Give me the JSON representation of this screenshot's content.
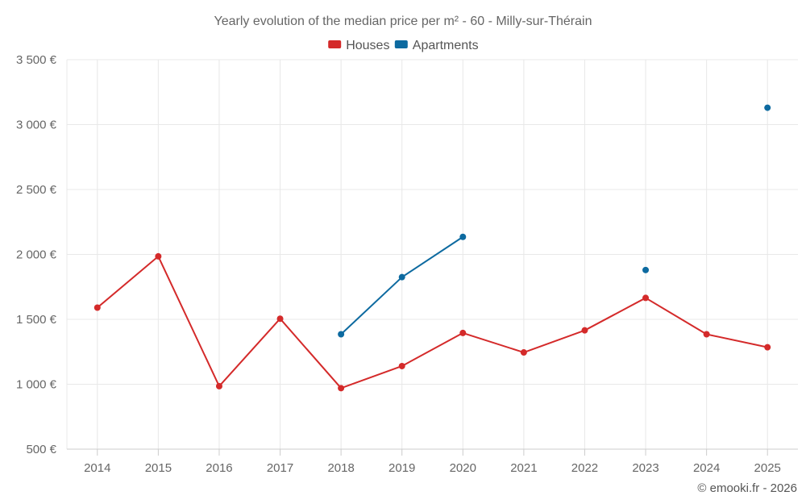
{
  "chart_data": {
    "type": "line",
    "title": "Yearly evolution of the median price per m² - 60 - Milly-sur-Thérain",
    "categories": [
      "2014",
      "2015",
      "2016",
      "2017",
      "2018",
      "2019",
      "2020",
      "2021",
      "2022",
      "2023",
      "2024",
      "2025"
    ],
    "ylim": [
      500,
      3500
    ],
    "yticks": [
      500,
      1000,
      1500,
      2000,
      2500,
      3000,
      3500
    ],
    "ytick_labels": [
      "500 €",
      "1 000 €",
      "1 500 €",
      "2 000 €",
      "2 500 €",
      "3 000 €",
      "3 500 €"
    ],
    "xlabel": "",
    "ylabel": "",
    "grid": true,
    "legend_position": "top-center",
    "series": [
      {
        "name": "Houses",
        "color": "#d42a2a",
        "values": [
          1590,
          1985,
          985,
          1505,
          970,
          1140,
          1395,
          1245,
          1415,
          1665,
          1385,
          1285
        ]
      },
      {
        "name": "Apartments",
        "color": "#0d6aa0",
        "values": [
          null,
          null,
          null,
          null,
          1385,
          1825,
          2135,
          null,
          null,
          1880,
          null,
          3130
        ]
      }
    ]
  },
  "credit": "© emooki.fr - 2026"
}
